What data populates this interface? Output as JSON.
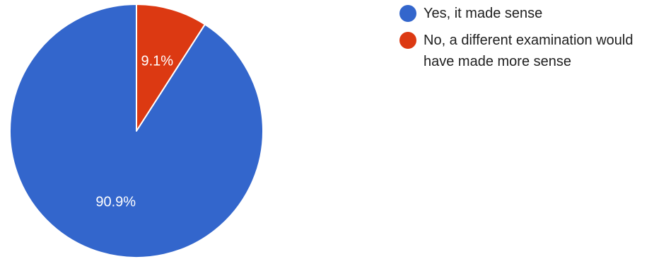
{
  "chart_data": {
    "type": "pie",
    "slices": [
      {
        "label": "Yes, it made sense",
        "value": 90.9,
        "display": "90.9%",
        "color": "#3366cc"
      },
      {
        "label": "No, a different examination would have made more sense",
        "value": 9.1,
        "display": "9.1%",
        "color": "#dc3912"
      }
    ],
    "start_angle_deg": 90,
    "direction": "counterclockwise",
    "legend_position": "right",
    "title": ""
  }
}
